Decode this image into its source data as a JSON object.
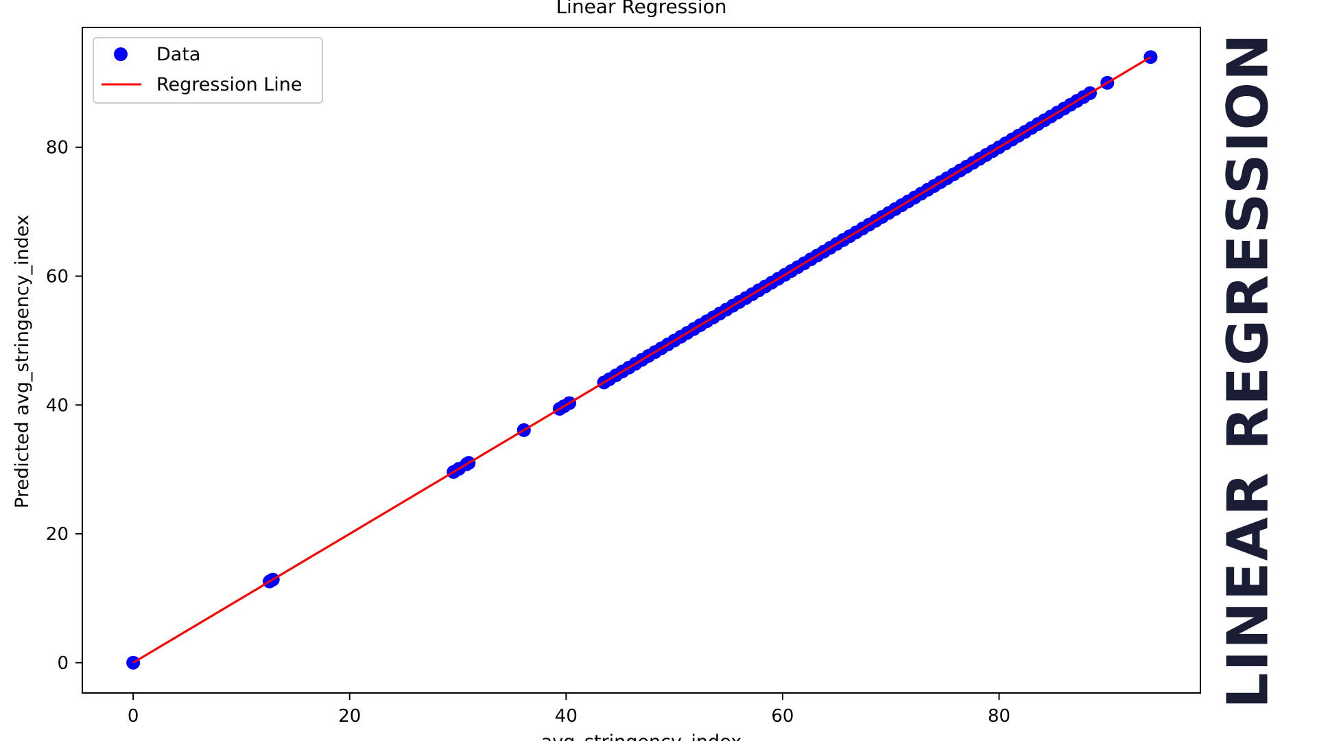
{
  "side_title": "LINEAR REGRESSION",
  "chart_data": {
    "type": "scatter",
    "title": "Linear Regression",
    "xlabel": "avg_stringency_index",
    "ylabel": "Predicted avg_stringency_index",
    "xlim": [
      -4.7,
      98.6
    ],
    "ylim": [
      -4.7,
      98.6
    ],
    "x_ticks": [
      0,
      20,
      40,
      60,
      80
    ],
    "y_ticks": [
      0,
      20,
      40,
      60,
      80
    ],
    "legend_position": "upper-left",
    "grid": false,
    "series": [
      {
        "name": "Data",
        "kind": "scatter",
        "color": "#0000ff",
        "x": [
          0,
          12.6,
          12.9,
          29.6,
          30.1,
          30.8,
          31.0,
          36.1,
          39.4,
          39.8,
          40.3,
          43.5,
          44.0,
          44.6,
          45.2,
          45.8,
          46.4,
          47.0,
          47.6,
          48.2,
          48.8,
          49.4,
          50.0,
          50.6,
          51.2,
          51.8,
          52.4,
          53.0,
          53.6,
          54.2,
          54.8,
          55.4,
          56.0,
          56.6,
          57.2,
          57.8,
          58.4,
          59.0,
          59.6,
          60.2,
          60.8,
          61.4,
          62.0,
          62.6,
          63.2,
          63.8,
          64.4,
          65.0,
          65.6,
          66.2,
          66.8,
          67.4,
          68.0,
          68.6,
          69.2,
          69.8,
          70.4,
          71.0,
          71.6,
          72.2,
          72.8,
          73.4,
          74.0,
          74.6,
          75.2,
          75.8,
          76.4,
          77.0,
          77.6,
          78.2,
          78.8,
          79.4,
          80.0,
          80.6,
          81.2,
          81.8,
          82.4,
          83.0,
          83.6,
          84.2,
          84.8,
          85.4,
          86.0,
          86.6,
          87.2,
          87.8,
          88.4,
          90.0,
          94.0
        ],
        "y": [
          0,
          12.6,
          12.9,
          29.6,
          30.1,
          30.8,
          31.0,
          36.1,
          39.4,
          39.8,
          40.3,
          43.5,
          44.0,
          44.6,
          45.2,
          45.8,
          46.4,
          47.0,
          47.6,
          48.2,
          48.8,
          49.4,
          50.0,
          50.6,
          51.2,
          51.8,
          52.4,
          53.0,
          53.6,
          54.2,
          54.8,
          55.4,
          56.0,
          56.6,
          57.2,
          57.8,
          58.4,
          59.0,
          59.6,
          60.2,
          60.8,
          61.4,
          62.0,
          62.6,
          63.2,
          63.8,
          64.4,
          65.0,
          65.6,
          66.2,
          66.8,
          67.4,
          68.0,
          68.6,
          69.2,
          69.8,
          70.4,
          71.0,
          71.6,
          72.2,
          72.8,
          73.4,
          74.0,
          74.6,
          75.2,
          75.8,
          76.4,
          77.0,
          77.6,
          78.2,
          78.8,
          79.4,
          80.0,
          80.6,
          81.2,
          81.8,
          82.4,
          83.0,
          83.6,
          84.2,
          84.8,
          85.4,
          86.0,
          86.6,
          87.2,
          87.8,
          88.4,
          90.0,
          94.0
        ]
      },
      {
        "name": "Regression Line",
        "kind": "line",
        "color": "#ff0000",
        "x": [
          0,
          94.0
        ],
        "y": [
          0,
          94.0
        ]
      }
    ]
  }
}
